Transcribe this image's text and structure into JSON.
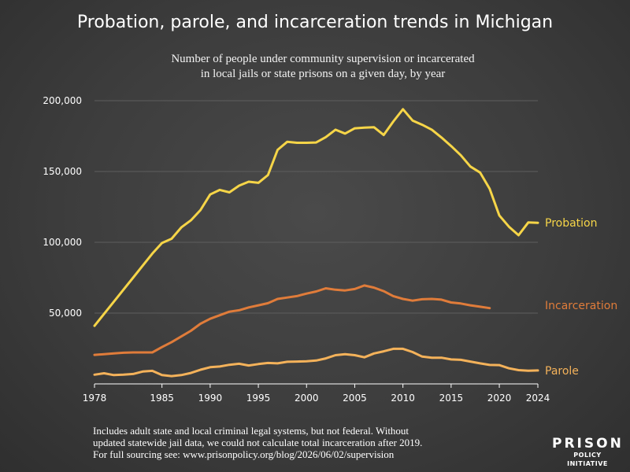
{
  "title": "Probation, parole, and incarceration trends in Michigan",
  "subtitle_lines": [
    "Number of people under community supervision or incarcerated",
    "in local jails or state prisons on a given day, by year"
  ],
  "footnote_lines": [
    "Includes adult state and local criminal legal systems, but not federal. Without",
    "updated statewide jail data, we could not calculate total incarceration after 2019.",
    "For full sourcing see: www.prisonpolicy.org/blog/2026/06/02/supervision"
  ],
  "logo": {
    "line1": "PRISON",
    "line2": "POLICY INITIATIVE"
  },
  "colors": {
    "probation": "#f6d548",
    "incarceration": "#e07c3a",
    "parole": "#f4b25a",
    "background": "#3d3d3d"
  },
  "chart_data": {
    "type": "line",
    "xlim": [
      1978,
      2024
    ],
    "ylim": [
      0,
      200000
    ],
    "x_ticks": [
      1978,
      1985,
      1990,
      1995,
      2000,
      2005,
      2010,
      2015,
      2020,
      2024
    ],
    "y_ticks": [
      50000,
      100000,
      150000,
      200000
    ],
    "y_tick_labels": [
      "50,000",
      "100,000",
      "150,000",
      "200,000"
    ],
    "grid": "horizontal",
    "series": [
      {
        "name": "Probation",
        "color": "#f6d548",
        "x": [
          1978,
          1979,
          1980,
          1981,
          1982,
          1983,
          1984,
          1985,
          1986,
          1987,
          1988,
          1989,
          1990,
          1991,
          1992,
          1993,
          1994,
          1995,
          1996,
          1997,
          1998,
          1999,
          2000,
          2001,
          2002,
          2003,
          2004,
          2005,
          2006,
          2007,
          2008,
          2009,
          2010,
          2011,
          2012,
          2013,
          2014,
          2015,
          2016,
          2017,
          2018,
          2019,
          2020,
          2021,
          2022,
          2023,
          2024
        ],
        "values": [
          41000,
          49500,
          58000,
          66500,
          75000,
          83500,
          92000,
          99500,
          102500,
          110500,
          115500,
          122800,
          133800,
          137000,
          135300,
          140000,
          142800,
          142000,
          147500,
          165300,
          171000,
          170300,
          170300,
          170500,
          174300,
          179500,
          176800,
          180500,
          181000,
          181300,
          175800,
          185300,
          194000,
          186000,
          183000,
          179500,
          174000,
          168000,
          161500,
          153500,
          149300,
          137800,
          119000,
          111000,
          105000,
          114000,
          113800
        ]
      },
      {
        "name": "Incarceration",
        "color": "#e07c3a",
        "x": [
          1978,
          1979,
          1980,
          1981,
          1982,
          1983,
          1984,
          1985,
          1986,
          1987,
          1988,
          1989,
          1990,
          1991,
          1992,
          1993,
          1994,
          1995,
          1996,
          1997,
          1998,
          1999,
          2000,
          2001,
          2002,
          2003,
          2004,
          2005,
          2006,
          2007,
          2008,
          2009,
          2010,
          2011,
          2012,
          2013,
          2014,
          2015,
          2016,
          2017,
          2018,
          2019
        ],
        "values": [
          20500,
          21000,
          21500,
          22000,
          22200,
          22200,
          22200,
          26000,
          29500,
          33500,
          37500,
          42500,
          46000,
          48500,
          51000,
          52000,
          54000,
          55500,
          57000,
          60000,
          61000,
          62000,
          63800,
          65300,
          67500,
          66500,
          66000,
          67000,
          69500,
          68000,
          65500,
          62000,
          60000,
          58800,
          59800,
          60000,
          59500,
          57500,
          56800,
          55500,
          54500,
          53500
        ]
      },
      {
        "name": "Parole",
        "color": "#f4b25a",
        "x": [
          1978,
          1979,
          1980,
          1981,
          1982,
          1983,
          1984,
          1985,
          1986,
          1987,
          1988,
          1989,
          1990,
          1991,
          1992,
          1993,
          1994,
          1995,
          1996,
          1997,
          1998,
          1999,
          2000,
          2001,
          2002,
          2003,
          2004,
          2005,
          2006,
          2007,
          2008,
          2009,
          2010,
          2011,
          2012,
          2013,
          2014,
          2015,
          2016,
          2017,
          2018,
          2019,
          2020,
          2021,
          2022,
          2023,
          2024
        ],
        "values": [
          6500,
          7500,
          6200,
          6500,
          7000,
          8700,
          9200,
          6200,
          5500,
          6200,
          7700,
          10000,
          11800,
          12300,
          13500,
          14200,
          13000,
          14000,
          14800,
          14500,
          15600,
          15800,
          16000,
          16500,
          18000,
          20300,
          21000,
          20300,
          18800,
          21500,
          23000,
          24800,
          24800,
          22500,
          19300,
          18500,
          18500,
          17300,
          17000,
          15800,
          14500,
          13400,
          13300,
          11000,
          9700,
          9300,
          9500
        ]
      }
    ]
  }
}
